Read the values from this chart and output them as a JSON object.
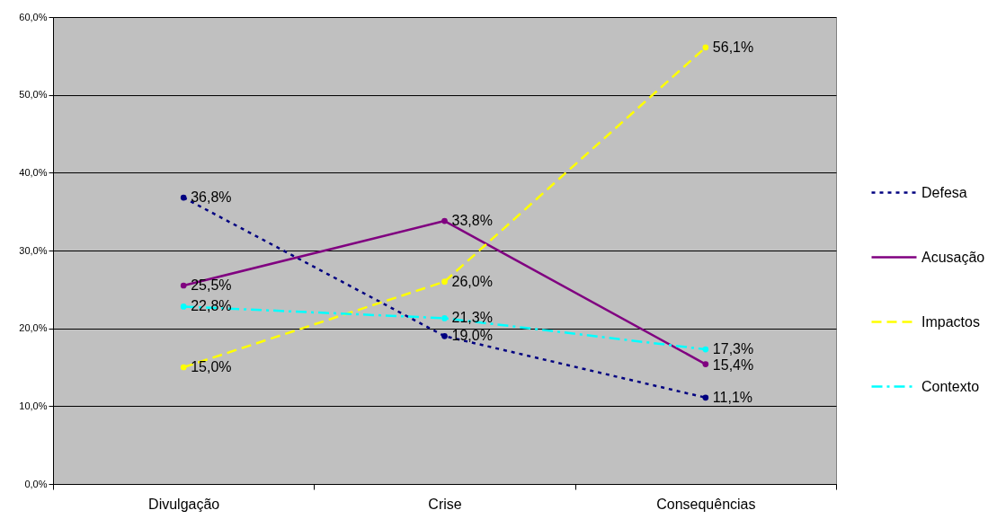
{
  "chart_data": {
    "type": "line",
    "categories": [
      "Divulgação",
      "Crise",
      "Consequências"
    ],
    "series": [
      {
        "name": "Defesa",
        "color": "#000080",
        "line_style": "dotted",
        "values": [
          36.8,
          19.0,
          11.1
        ],
        "value_labels": [
          "36,8%",
          "19,0%",
          "11,1%"
        ]
      },
      {
        "name": "Acusação",
        "color": "#800080",
        "line_style": "solid",
        "values": [
          25.5,
          33.8,
          15.4
        ],
        "value_labels": [
          "25,5%",
          "33,8%",
          "15,4%"
        ]
      },
      {
        "name": "Impactos",
        "color": "#ffff00",
        "line_style": "dashed",
        "values": [
          15.0,
          26.0,
          56.1
        ],
        "value_labels": [
          "15,0%",
          "26,0%",
          "56,1%"
        ]
      },
      {
        "name": "Contexto",
        "color": "#00ffff",
        "line_style": "dashdot",
        "values": [
          22.8,
          21.3,
          17.3
        ],
        "value_labels": [
          "22,8%",
          "21,3%",
          "17,3%"
        ]
      }
    ],
    "ylim": [
      0,
      60
    ],
    "yticks": [
      {
        "value": 0,
        "label": "0,0%"
      },
      {
        "value": 10,
        "label": "10,0%"
      },
      {
        "value": 20,
        "label": "20,0%"
      },
      {
        "value": 30,
        "label": "30,0%"
      },
      {
        "value": 40,
        "label": "40,0%"
      },
      {
        "value": 50,
        "label": "50,0%"
      },
      {
        "value": 60,
        "label": "60,0%"
      }
    ],
    "grid": "y",
    "legend": "right",
    "marker": "circle"
  }
}
